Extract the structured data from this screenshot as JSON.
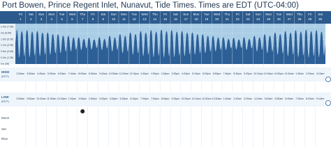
{
  "header": {
    "title": "Port Bowen, Prince Regent Inlet, Nunavut, Tide Times. Times are EDT (UTC-04:00)",
    "days": [
      "Fri",
      "Sat",
      "Sun",
      "Mon",
      "Tue",
      "Wed",
      "Thu",
      "Fri",
      "Sat",
      "Sun",
      "Mon",
      "Tue",
      "Wed",
      "Thu",
      "Fri",
      "Sat",
      "Sun",
      "Mon",
      "Tue",
      "Wed",
      "Thu",
      "Fri",
      "Sat",
      "Sun",
      "Mon",
      "Tue",
      "Wed",
      "Thu",
      "Fri",
      "Sat"
    ],
    "dates": [
      1,
      2,
      3,
      4,
      5,
      6,
      7,
      8,
      9,
      10,
      11,
      12,
      13,
      14,
      15,
      16,
      17,
      18,
      19,
      20,
      21,
      22,
      23,
      24,
      25,
      26,
      27,
      28,
      29,
      30
    ]
  },
  "chart_data": {
    "type": "area",
    "color": "#2d5f97",
    "background": "#a9cde6",
    "x": [
      3,
      9,
      15,
      21,
      27,
      33,
      39,
      45,
      51,
      57,
      63,
      69,
      75,
      81,
      87,
      93,
      99,
      105,
      111,
      117,
      123,
      129,
      135,
      141,
      147,
      153,
      159,
      165,
      171,
      177,
      183,
      189,
      195,
      201,
      207,
      213,
      219,
      225,
      231,
      237,
      243,
      249,
      255,
      261,
      267,
      273,
      279,
      285,
      291,
      297,
      303,
      309,
      315,
      321,
      327,
      333,
      339,
      345,
      351,
      357,
      363,
      369,
      375,
      381,
      387,
      393,
      399,
      405,
      411,
      417,
      423,
      429,
      435,
      441,
      447,
      453,
      459,
      465,
      471,
      477,
      483,
      489,
      495,
      501,
      507,
      513,
      519,
      525,
      531,
      537,
      543,
      549,
      555,
      561,
      567,
      573,
      579,
      585,
      591,
      597,
      603,
      609,
      615,
      621,
      627,
      633,
      639,
      645,
      651,
      657,
      663,
      669,
      675,
      681,
      687,
      693,
      699,
      705,
      711,
      717
    ],
    "values": [
      2.2,
      0.4,
      2.1,
      0.5,
      2.17,
      0.43,
      2.07,
      0.53,
      2.11,
      0.49,
      2.01,
      0.59,
      2.02,
      0.58,
      1.92,
      0.68,
      1.91,
      0.69,
      1.81,
      0.79,
      1.8,
      0.8,
      1.7,
      0.9,
      1.71,
      0.89,
      1.61,
      0.99,
      1.68,
      0.92,
      1.58,
      1.02,
      1.71,
      0.89,
      1.61,
      0.99,
      1.8,
      0.8,
      1.7,
      0.9,
      1.91,
      0.69,
      1.81,
      0.79,
      2.02,
      0.58,
      1.92,
      0.68,
      2.11,
      0.49,
      2.01,
      0.59,
      2.17,
      0.43,
      2.07,
      0.53,
      2.2,
      0.4,
      2.1,
      0.5,
      2.17,
      0.43,
      2.07,
      0.53,
      2.11,
      0.49,
      2.01,
      0.59,
      2.02,
      0.58,
      1.92,
      0.68,
      1.91,
      0.69,
      1.81,
      0.79,
      1.8,
      0.8,
      1.7,
      0.9,
      1.71,
      0.89,
      1.61,
      0.99,
      1.68,
      0.92,
      1.58,
      1.02,
      1.71,
      0.89,
      1.61,
      0.99,
      1.8,
      0.8,
      1.7,
      0.9,
      1.91,
      0.69,
      1.81,
      0.79,
      2.02,
      0.58,
      1.92,
      0.68,
      2.11,
      0.49,
      2.01,
      0.59,
      2.17,
      0.43,
      2.07,
      0.53,
      2.2,
      0.4,
      2.1,
      0.5,
      2.17,
      0.43,
      2.07,
      0.53
    ],
    "xlim": [
      0,
      720
    ],
    "ylim": [
      0,
      2.6
    ],
    "yticks": [
      {
        "value": 0,
        "label": "0m (0ft)"
      },
      {
        "value": 0.4,
        "label": "0.4m (1.3ft)"
      },
      {
        "value": 0.8,
        "label": "0.8m (2.6ft)"
      },
      {
        "value": 1.2,
        "label": "1.2m (3.9ft)"
      },
      {
        "value": 1.6,
        "label": "1.6m (5.2ft)"
      },
      {
        "value": 2,
        "label": "2m (6.6ft)"
      },
      {
        "value": 2.4,
        "label": "2.4m (7.9ft)"
      }
    ]
  },
  "table": {
    "labels": {
      "high": "HIGH",
      "low": "LOW",
      "zone": "(EDT)",
      "moon": "Moon",
      "set": "Set",
      "rise": "Rise"
    },
    "high": [
      "3:00am",
      "3:50am",
      "4:40am",
      "5:30am",
      "6:20am",
      "7:10am",
      "8:00am",
      "8:50am",
      "9:40am",
      "10:30am",
      "11:20am",
      "12:10pm",
      "1:00pm",
      "1:50pm",
      "2:40pm",
      "3:30pm",
      "4:20pm",
      "5:10pm",
      "6:00pm",
      "6:50pm",
      "7:40pm",
      "8:30pm",
      "9:20pm",
      "10:10pm",
      "11:00pm",
      "11:50pm",
      "12:40am",
      "1:30am",
      "2:20am",
      "3:10am"
    ],
    "low": [
      "9:00am",
      "9:50am",
      "10:40am",
      "11:30am",
      "12:20pm",
      "1:10pm",
      "2:00pm",
      "2:50pm",
      "3:40pm",
      "4:30pm",
      "5:20pm",
      "6:10pm",
      "7:00pm",
      "7:50pm",
      "8:40pm",
      "9:30pm",
      "10:20pm",
      "11:10pm",
      "12:00am",
      "12:50am",
      "1:40am",
      "2:30am",
      "3:20am",
      "4:10am",
      "5:00am",
      "5:50am",
      "6:40am",
      "7:30am",
      "8:20am",
      "9:10am"
    ]
  }
}
